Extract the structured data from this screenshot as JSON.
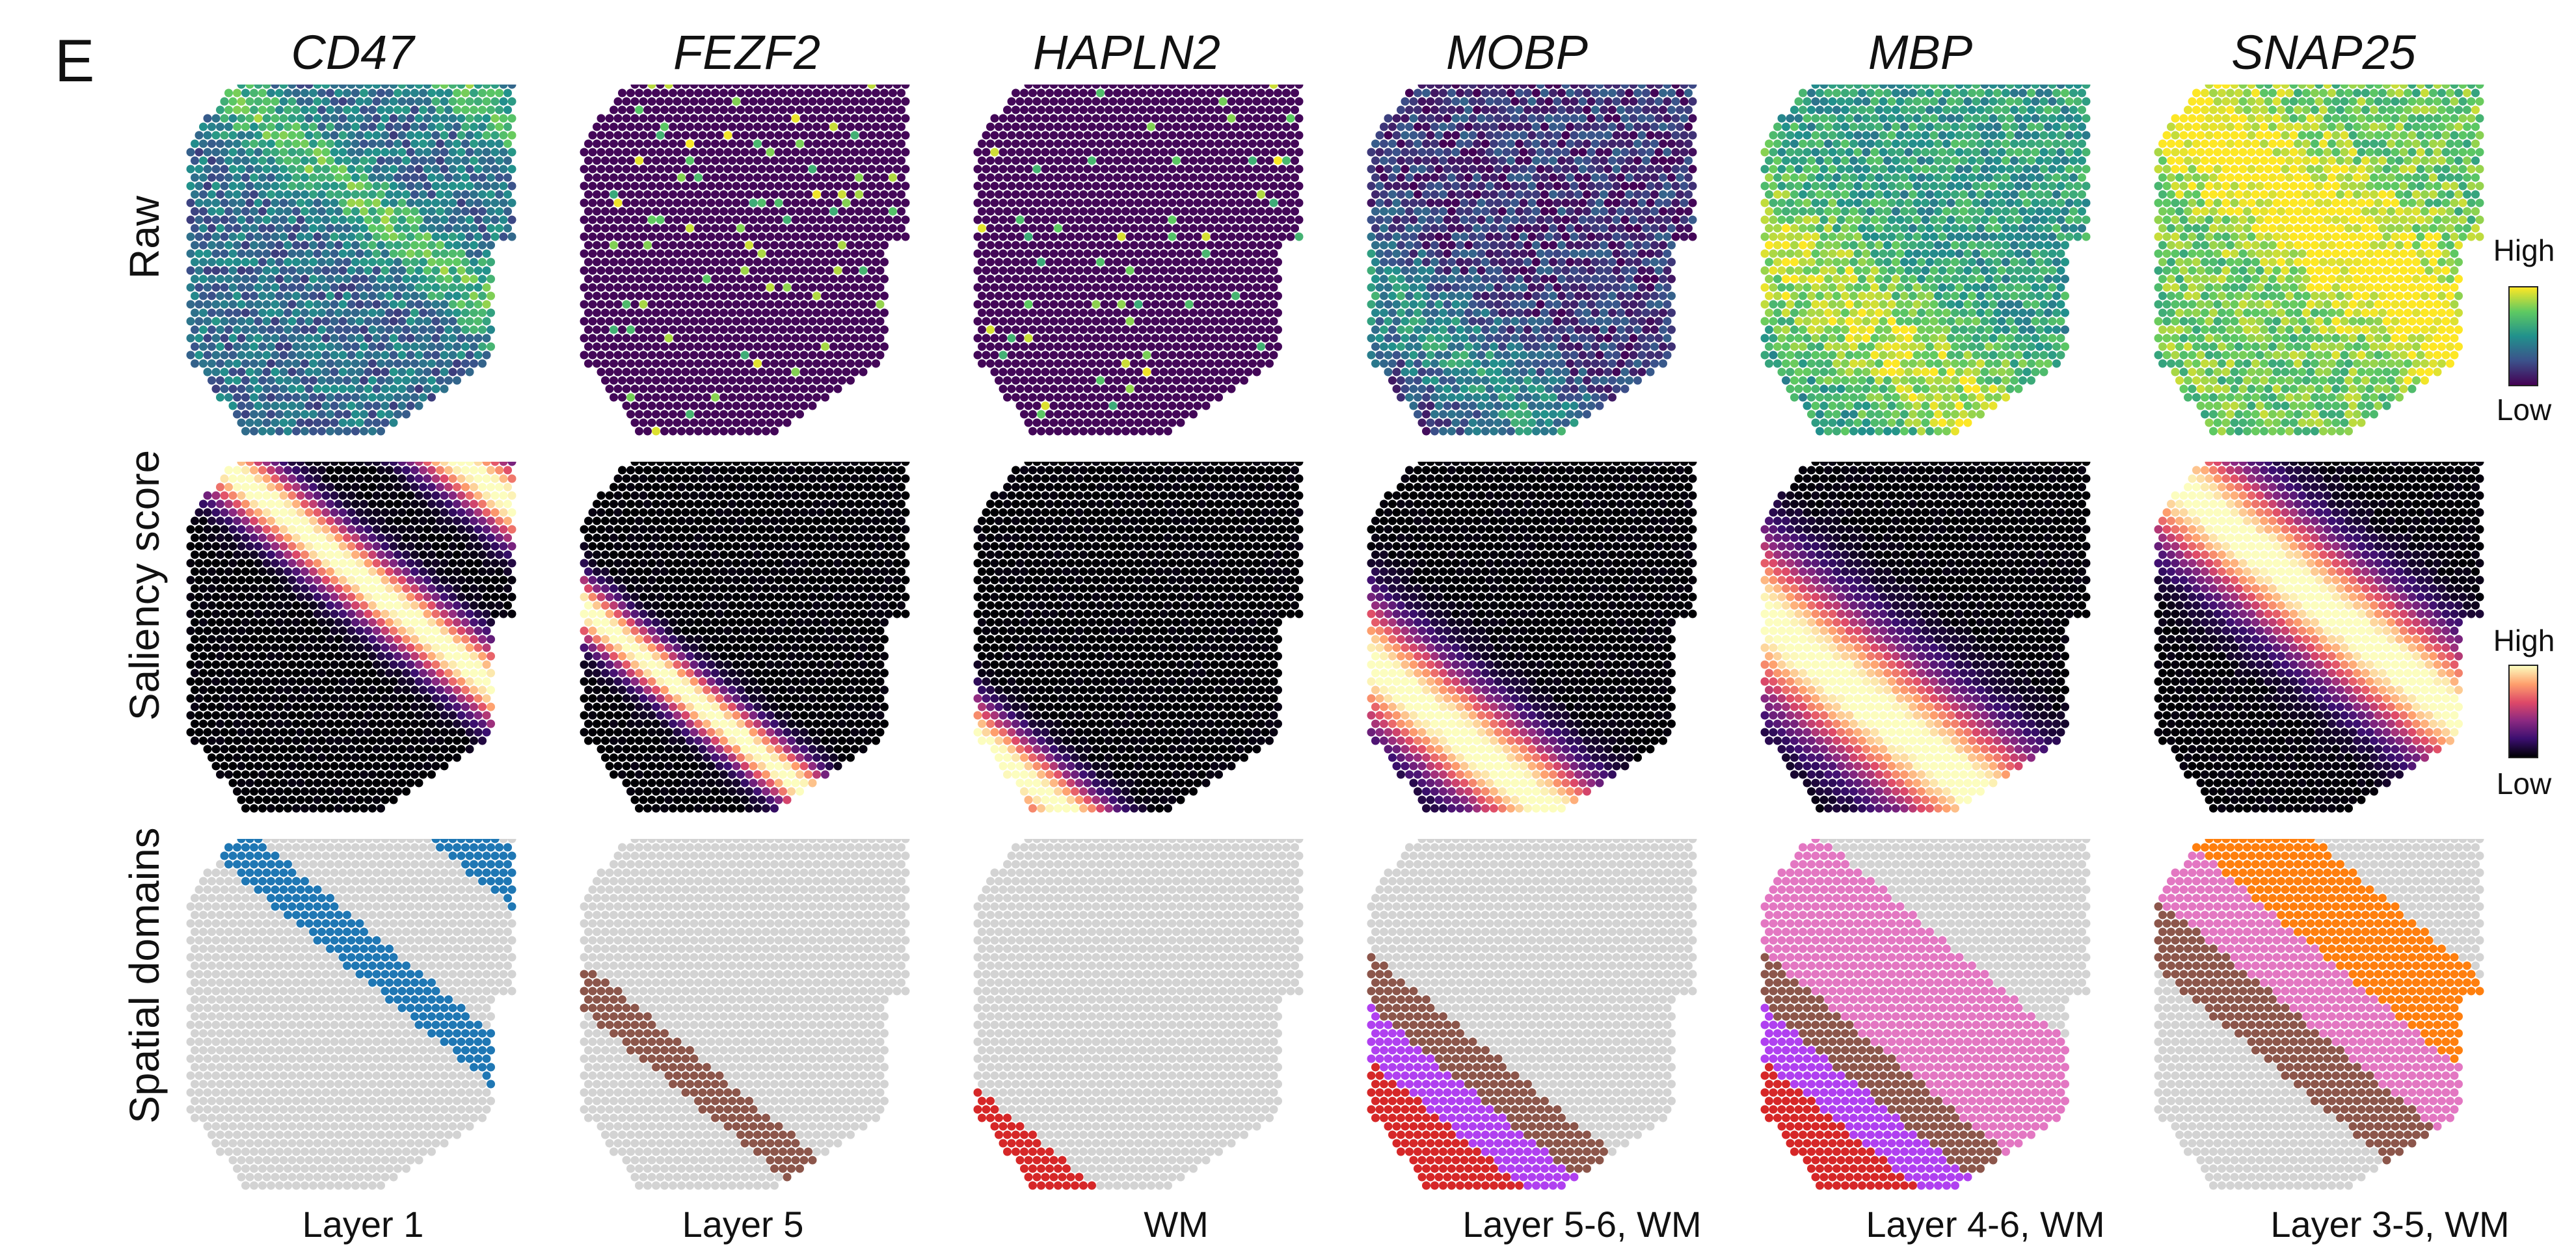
{
  "panel_letter": "E",
  "genes": [
    "CD47",
    "FEZF2",
    "HAPLN2",
    "MOBP",
    "MBP",
    "SNAP25"
  ],
  "row_labels": [
    "Raw",
    "Saliency score",
    "Spatial domains"
  ],
  "domain_labels": [
    "Layer 1",
    "Layer 5",
    "WM",
    "Layer 5-6, WM",
    "Layer 4-6, WM",
    "Layer 3-5, WM"
  ],
  "legend": {
    "raw": {
      "high": "High",
      "low": "Low"
    },
    "saliency": {
      "high": "High",
      "low": "Low"
    }
  },
  "colors": {
    "background_tissue": "#d3d3d3",
    "layer1": "#1f77b4",
    "layer3": "#ff7f0e",
    "layer4": "#e377c2",
    "layer5": "#8c564b",
    "layer6": "#b040f0",
    "wm": "#d62728",
    "viridis": [
      "#440154",
      "#3b528b",
      "#21918c",
      "#5ec962",
      "#fde725"
    ],
    "magma": [
      "#000004",
      "#3b0f70",
      "#8c2981",
      "#de4968",
      "#fe9f6d",
      "#fcfdbf"
    ]
  }
}
